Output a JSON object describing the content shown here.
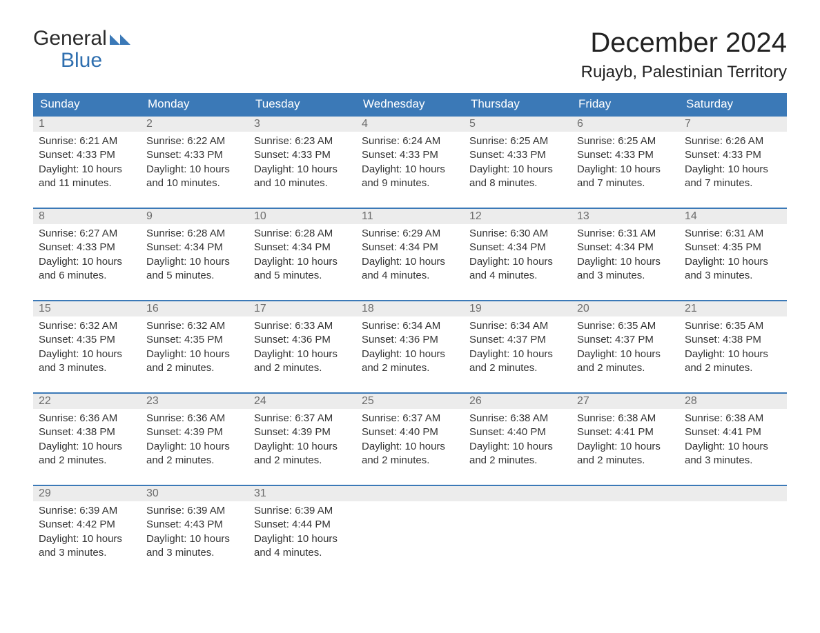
{
  "logo": {
    "line1": "General",
    "line2": "Blue",
    "accent_color": "#2f6faf",
    "icon_color": "#3b79b7"
  },
  "title": "December 2024",
  "location": "Rujayb, Palestinian Territory",
  "colors": {
    "header_bg": "#3b79b7",
    "header_text": "#ffffff",
    "daynum_bg": "#ececec",
    "daynum_text": "#6d6d6d",
    "row_border": "#3b79b7",
    "body_text": "#333333",
    "page_bg": "#ffffff"
  },
  "day_headers": [
    "Sunday",
    "Monday",
    "Tuesday",
    "Wednesday",
    "Thursday",
    "Friday",
    "Saturday"
  ],
  "weeks": [
    [
      {
        "n": "1",
        "sunrise": "Sunrise: 6:21 AM",
        "sunset": "Sunset: 4:33 PM",
        "day1": "Daylight: 10 hours",
        "day2": "and 11 minutes."
      },
      {
        "n": "2",
        "sunrise": "Sunrise: 6:22 AM",
        "sunset": "Sunset: 4:33 PM",
        "day1": "Daylight: 10 hours",
        "day2": "and 10 minutes."
      },
      {
        "n": "3",
        "sunrise": "Sunrise: 6:23 AM",
        "sunset": "Sunset: 4:33 PM",
        "day1": "Daylight: 10 hours",
        "day2": "and 10 minutes."
      },
      {
        "n": "4",
        "sunrise": "Sunrise: 6:24 AM",
        "sunset": "Sunset: 4:33 PM",
        "day1": "Daylight: 10 hours",
        "day2": "and 9 minutes."
      },
      {
        "n": "5",
        "sunrise": "Sunrise: 6:25 AM",
        "sunset": "Sunset: 4:33 PM",
        "day1": "Daylight: 10 hours",
        "day2": "and 8 minutes."
      },
      {
        "n": "6",
        "sunrise": "Sunrise: 6:25 AM",
        "sunset": "Sunset: 4:33 PM",
        "day1": "Daylight: 10 hours",
        "day2": "and 7 minutes."
      },
      {
        "n": "7",
        "sunrise": "Sunrise: 6:26 AM",
        "sunset": "Sunset: 4:33 PM",
        "day1": "Daylight: 10 hours",
        "day2": "and 7 minutes."
      }
    ],
    [
      {
        "n": "8",
        "sunrise": "Sunrise: 6:27 AM",
        "sunset": "Sunset: 4:33 PM",
        "day1": "Daylight: 10 hours",
        "day2": "and 6 minutes."
      },
      {
        "n": "9",
        "sunrise": "Sunrise: 6:28 AM",
        "sunset": "Sunset: 4:34 PM",
        "day1": "Daylight: 10 hours",
        "day2": "and 5 minutes."
      },
      {
        "n": "10",
        "sunrise": "Sunrise: 6:28 AM",
        "sunset": "Sunset: 4:34 PM",
        "day1": "Daylight: 10 hours",
        "day2": "and 5 minutes."
      },
      {
        "n": "11",
        "sunrise": "Sunrise: 6:29 AM",
        "sunset": "Sunset: 4:34 PM",
        "day1": "Daylight: 10 hours",
        "day2": "and 4 minutes."
      },
      {
        "n": "12",
        "sunrise": "Sunrise: 6:30 AM",
        "sunset": "Sunset: 4:34 PM",
        "day1": "Daylight: 10 hours",
        "day2": "and 4 minutes."
      },
      {
        "n": "13",
        "sunrise": "Sunrise: 6:31 AM",
        "sunset": "Sunset: 4:34 PM",
        "day1": "Daylight: 10 hours",
        "day2": "and 3 minutes."
      },
      {
        "n": "14",
        "sunrise": "Sunrise: 6:31 AM",
        "sunset": "Sunset: 4:35 PM",
        "day1": "Daylight: 10 hours",
        "day2": "and 3 minutes."
      }
    ],
    [
      {
        "n": "15",
        "sunrise": "Sunrise: 6:32 AM",
        "sunset": "Sunset: 4:35 PM",
        "day1": "Daylight: 10 hours",
        "day2": "and 3 minutes."
      },
      {
        "n": "16",
        "sunrise": "Sunrise: 6:32 AM",
        "sunset": "Sunset: 4:35 PM",
        "day1": "Daylight: 10 hours",
        "day2": "and 2 minutes."
      },
      {
        "n": "17",
        "sunrise": "Sunrise: 6:33 AM",
        "sunset": "Sunset: 4:36 PM",
        "day1": "Daylight: 10 hours",
        "day2": "and 2 minutes."
      },
      {
        "n": "18",
        "sunrise": "Sunrise: 6:34 AM",
        "sunset": "Sunset: 4:36 PM",
        "day1": "Daylight: 10 hours",
        "day2": "and 2 minutes."
      },
      {
        "n": "19",
        "sunrise": "Sunrise: 6:34 AM",
        "sunset": "Sunset: 4:37 PM",
        "day1": "Daylight: 10 hours",
        "day2": "and 2 minutes."
      },
      {
        "n": "20",
        "sunrise": "Sunrise: 6:35 AM",
        "sunset": "Sunset: 4:37 PM",
        "day1": "Daylight: 10 hours",
        "day2": "and 2 minutes."
      },
      {
        "n": "21",
        "sunrise": "Sunrise: 6:35 AM",
        "sunset": "Sunset: 4:38 PM",
        "day1": "Daylight: 10 hours",
        "day2": "and 2 minutes."
      }
    ],
    [
      {
        "n": "22",
        "sunrise": "Sunrise: 6:36 AM",
        "sunset": "Sunset: 4:38 PM",
        "day1": "Daylight: 10 hours",
        "day2": "and 2 minutes."
      },
      {
        "n": "23",
        "sunrise": "Sunrise: 6:36 AM",
        "sunset": "Sunset: 4:39 PM",
        "day1": "Daylight: 10 hours",
        "day2": "and 2 minutes."
      },
      {
        "n": "24",
        "sunrise": "Sunrise: 6:37 AM",
        "sunset": "Sunset: 4:39 PM",
        "day1": "Daylight: 10 hours",
        "day2": "and 2 minutes."
      },
      {
        "n": "25",
        "sunrise": "Sunrise: 6:37 AM",
        "sunset": "Sunset: 4:40 PM",
        "day1": "Daylight: 10 hours",
        "day2": "and 2 minutes."
      },
      {
        "n": "26",
        "sunrise": "Sunrise: 6:38 AM",
        "sunset": "Sunset: 4:40 PM",
        "day1": "Daylight: 10 hours",
        "day2": "and 2 minutes."
      },
      {
        "n": "27",
        "sunrise": "Sunrise: 6:38 AM",
        "sunset": "Sunset: 4:41 PM",
        "day1": "Daylight: 10 hours",
        "day2": "and 2 minutes."
      },
      {
        "n": "28",
        "sunrise": "Sunrise: 6:38 AM",
        "sunset": "Sunset: 4:41 PM",
        "day1": "Daylight: 10 hours",
        "day2": "and 3 minutes."
      }
    ],
    [
      {
        "n": "29",
        "sunrise": "Sunrise: 6:39 AM",
        "sunset": "Sunset: 4:42 PM",
        "day1": "Daylight: 10 hours",
        "day2": "and 3 minutes."
      },
      {
        "n": "30",
        "sunrise": "Sunrise: 6:39 AM",
        "sunset": "Sunset: 4:43 PM",
        "day1": "Daylight: 10 hours",
        "day2": "and 3 minutes."
      },
      {
        "n": "31",
        "sunrise": "Sunrise: 6:39 AM",
        "sunset": "Sunset: 4:44 PM",
        "day1": "Daylight: 10 hours",
        "day2": "and 4 minutes."
      },
      {
        "empty": true
      },
      {
        "empty": true
      },
      {
        "empty": true
      },
      {
        "empty": true
      }
    ]
  ]
}
